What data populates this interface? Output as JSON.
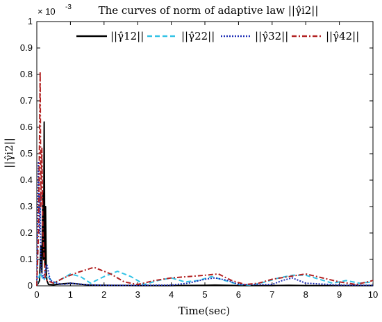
{
  "chart_data": {
    "type": "line",
    "title": "The curves of norm of adaptive law ||γ̂i2||",
    "xlabel": "Time(sec)",
    "ylabel": "||γ̂i2||",
    "y_multiplier": "× 10",
    "y_exponent": "-3",
    "xlim": [
      0,
      10
    ],
    "ylim": [
      0,
      1
    ],
    "x_ticks": [
      0,
      1,
      2,
      3,
      4,
      5,
      6,
      7,
      8,
      9,
      10
    ],
    "y_ticks": [
      0,
      0.1,
      0.2,
      0.3,
      0.4,
      0.5,
      0.6,
      0.7,
      0.8,
      0.9,
      1
    ],
    "grid": false,
    "legend_position": "top",
    "series": [
      {
        "name": "||γ̂12||",
        "color": "#000000",
        "style": "solid",
        "x": [
          0,
          0.08,
          0.12,
          0.15,
          0.18,
          0.2,
          0.22,
          0.24,
          0.26,
          0.28,
          0.3,
          0.35,
          0.5,
          0.8,
          1.0,
          1.3,
          1.6,
          2.0,
          3,
          4,
          5,
          5.3,
          6,
          7,
          7.5,
          8,
          9,
          10
        ],
        "y": [
          0,
          0.02,
          0.15,
          0.05,
          0.35,
          0.1,
          0.62,
          0.08,
          0.3,
          0.05,
          0.02,
          0.005,
          0.004,
          0.008,
          0.01,
          0.006,
          0.003,
          0.002,
          0.001,
          0.001,
          0.002,
          0.003,
          0.001,
          0.001,
          0.002,
          0.001,
          0.001,
          0.001
        ]
      },
      {
        "name": "||γ̂22||",
        "color": "#33c3e6",
        "style": "dashed",
        "x": [
          0,
          0.1,
          0.2,
          0.3,
          0.5,
          0.8,
          1.0,
          1.3,
          1.6,
          2.0,
          2.4,
          2.8,
          3.2,
          3.6,
          4.0,
          4.4,
          4.8,
          5.2,
          5.6,
          6.0,
          6.4,
          6.8,
          7.2,
          7.6,
          8.0,
          8.4,
          8.8,
          9.2,
          9.6,
          10
        ],
        "y": [
          0,
          0.05,
          0.02,
          0.04,
          0.01,
          0.03,
          0.045,
          0.035,
          0.01,
          0.035,
          0.055,
          0.035,
          0.005,
          0.02,
          0.03,
          0.015,
          0.02,
          0.035,
          0.02,
          0.005,
          0.003,
          0.015,
          0.03,
          0.04,
          0.04,
          0.025,
          0.01,
          0.02,
          0.01,
          0.015
        ]
      },
      {
        "name": "||γ̂32||",
        "color": "#1f2fb5",
        "style": "dotted",
        "x": [
          0,
          0.05,
          0.08,
          0.1,
          0.12,
          0.15,
          0.2,
          0.3,
          0.4,
          0.6,
          0.8,
          1.0,
          1.5,
          2.0,
          3.0,
          4.0,
          4.5,
          5.0,
          5.3,
          5.7,
          6.0,
          7.0,
          7.3,
          7.6,
          8.0,
          9.0,
          10
        ],
        "y": [
          0,
          0.47,
          0.2,
          0.35,
          0.08,
          0.05,
          0.03,
          0.08,
          0.02,
          0.01,
          0.005,
          0.01,
          0.004,
          0.002,
          0.002,
          0.003,
          0.01,
          0.025,
          0.03,
          0.02,
          0.005,
          0.005,
          0.02,
          0.03,
          0.01,
          0.003,
          0.002
        ]
      },
      {
        "name": "||γ̂42||",
        "color": "#b22222",
        "style": "dashdot",
        "x": [
          0,
          0.05,
          0.08,
          0.1,
          0.12,
          0.15,
          0.18,
          0.2,
          0.25,
          0.3,
          0.5,
          0.8,
          1.2,
          1.7,
          2.2,
          2.6,
          3.0,
          3.5,
          4.0,
          4.5,
          5.0,
          5.4,
          5.8,
          6.2,
          6.6,
          7.0,
          7.5,
          8.0,
          8.5,
          9.0,
          9.5,
          10
        ],
        "y": [
          0,
          0.2,
          0.55,
          0.81,
          0.3,
          0.52,
          0.2,
          0.15,
          0.03,
          0.02,
          0.01,
          0.03,
          0.05,
          0.07,
          0.045,
          0.015,
          0.005,
          0.02,
          0.03,
          0.035,
          0.04,
          0.045,
          0.02,
          0.005,
          0.01,
          0.025,
          0.035,
          0.045,
          0.03,
          0.015,
          0.005,
          0.02
        ]
      }
    ]
  }
}
